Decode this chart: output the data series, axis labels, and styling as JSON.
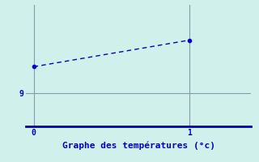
{
  "x": [
    0,
    1
  ],
  "y": [
    10.2,
    11.4
  ],
  "line_color": "#0000cc",
  "marker": "o",
  "marker_size": 3,
  "background_color": "#cff0eb",
  "grid_color": "#8899aa",
  "xlabel": "Graphe des températures (°c)",
  "xlabel_color": "#0000cc",
  "xlabel_fontsize": 8,
  "xticks": [
    0,
    1
  ],
  "ytick_value": 9,
  "ylim": [
    7.5,
    13.0
  ],
  "xlim": [
    -0.05,
    1.4
  ],
  "tick_color": "#0000cc",
  "spine_bottom_color": "#0000aa",
  "spine_left_color": "#888888",
  "line_style": "--",
  "line_width": 1.0,
  "dashes": [
    4,
    3
  ]
}
